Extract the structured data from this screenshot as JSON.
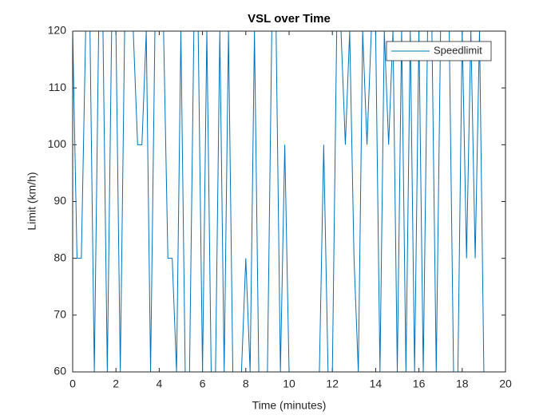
{
  "chart_data": {
    "type": "line",
    "title": "VSL over Time",
    "x_label": "Time (minutes)",
    "y_label": "Limit (km/h)",
    "x": [
      0,
      0.2,
      0.4,
      0.6,
      0.8,
      1.0,
      1.2,
      1.4,
      1.6,
      1.8,
      2.0,
      2.2,
      2.4,
      2.6,
      2.8,
      3.0,
      3.2,
      3.4,
      3.6,
      3.8,
      4.0,
      4.2,
      4.4,
      4.6,
      4.8,
      5.0,
      5.2,
      5.4,
      5.6,
      5.8,
      6.0,
      6.2,
      6.4,
      6.6,
      6.8,
      7.0,
      7.2,
      7.4,
      7.6,
      7.8,
      8.0,
      8.2,
      8.4,
      8.6,
      8.8,
      9.0,
      9.2,
      9.4,
      9.6,
      9.8,
      10.0,
      10.2,
      10.4,
      10.6,
      10.8,
      11.0,
      11.2,
      11.4,
      11.6,
      11.8,
      12.0,
      12.2,
      12.4,
      12.6,
      12.8,
      13.0,
      13.2,
      13.4,
      13.6,
      13.8,
      14.0,
      14.2,
      14.4,
      14.6,
      14.8,
      15.0,
      15.2,
      15.4,
      15.6,
      15.8,
      16.0,
      16.2,
      16.4,
      16.6,
      16.8,
      17.0,
      17.2,
      17.4,
      17.6,
      17.8,
      18.0,
      18.2,
      18.4,
      18.6,
      18.8,
      19.0,
      19.2,
      19.4,
      19.6,
      19.8,
      20.0
    ],
    "series": [
      {
        "name": "Speedlimit",
        "color": "#0072bd",
        "values": [
          120,
          80,
          80,
          120,
          120,
          60,
          120,
          120,
          60,
          120,
          120,
          60,
          120,
          120,
          120,
          100,
          100,
          120,
          60,
          120,
          120,
          120,
          80,
          80,
          60,
          120,
          60,
          60,
          120,
          120,
          60,
          120,
          60,
          60,
          120,
          60,
          120,
          60,
          60,
          60,
          80,
          60,
          120,
          60,
          60,
          60,
          120,
          120,
          60,
          100,
          60,
          60,
          60,
          60,
          60,
          60,
          60,
          60,
          100,
          60,
          60,
          120,
          120,
          100,
          120,
          80,
          60,
          120,
          100,
          120,
          120,
          60,
          120,
          100,
          120,
          60,
          120,
          60,
          120,
          60,
          120,
          60,
          120,
          120,
          60,
          120,
          120,
          120,
          60,
          60,
          120,
          80,
          120,
          80,
          120,
          60,
          60,
          60,
          60,
          60,
          60
        ]
      }
    ],
    "xlim": [
      0,
      20
    ],
    "ylim": [
      60,
      120
    ],
    "xticks": [
      0,
      2,
      4,
      6,
      8,
      10,
      12,
      14,
      16,
      18,
      20
    ],
    "yticks": [
      60,
      70,
      80,
      90,
      100,
      110,
      120
    ],
    "legend": "upper right"
  }
}
